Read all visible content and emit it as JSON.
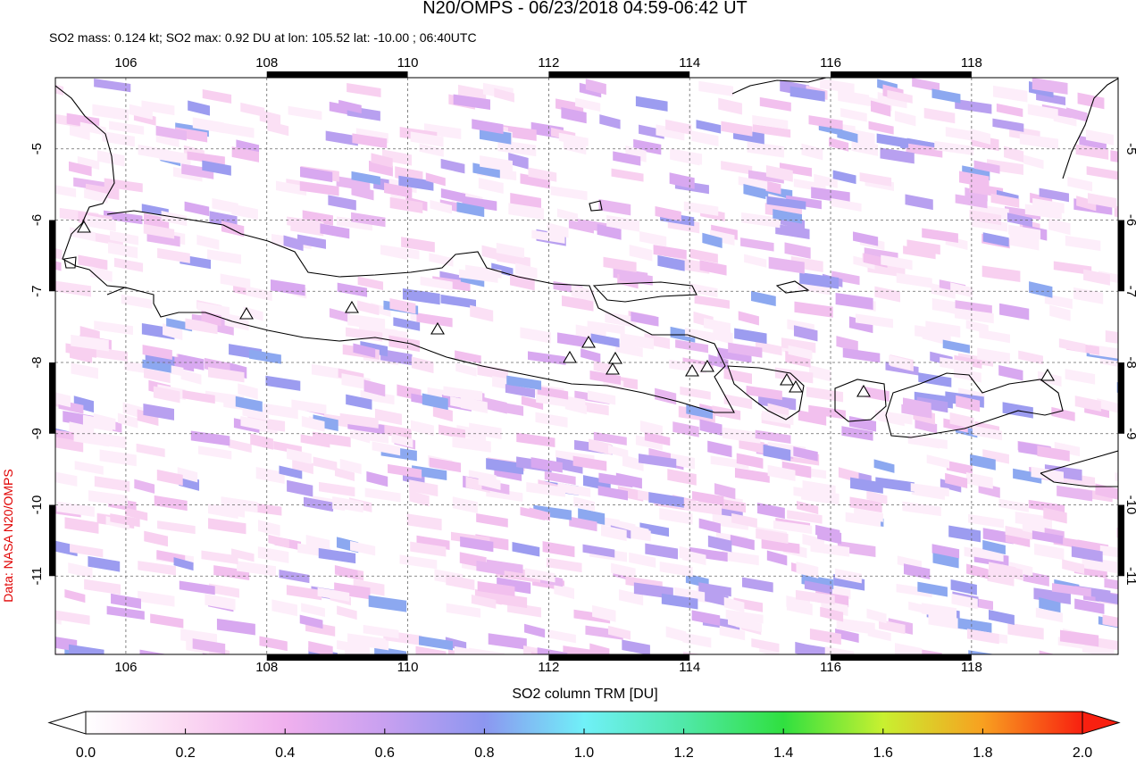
{
  "header": {
    "title": "N20/OMPS - 06/23/2018 04:59-06:42 UT",
    "subtitle": "SO2 mass: 0.124 kt; SO2 max: 0.92 DU at lon: 105.52 lat: -10.00 ; 06:40UTC"
  },
  "map": {
    "xlim": [
      105,
      120.08
    ],
    "ylim": [
      -12.1,
      -4
    ],
    "xticks": [
      106,
      108,
      110,
      112,
      114,
      116,
      118
    ],
    "yticks": [
      -5,
      -6,
      -7,
      -8,
      -9,
      -10,
      -11
    ],
    "grid": true
  },
  "colorbar": {
    "label": "SO2 column TRM [DU]",
    "lim": [
      0,
      2
    ],
    "ticks": [
      {
        "value": 0,
        "label": "0.0"
      },
      0.2,
      0.4,
      0.6,
      0.8,
      {
        "value": 1,
        "label": "1.0"
      },
      1.2,
      1.4,
      1.6,
      1.8,
      {
        "value": 2,
        "label": "2.0"
      }
    ]
  },
  "credit": "Data: NASA N20/OMPS"
}
